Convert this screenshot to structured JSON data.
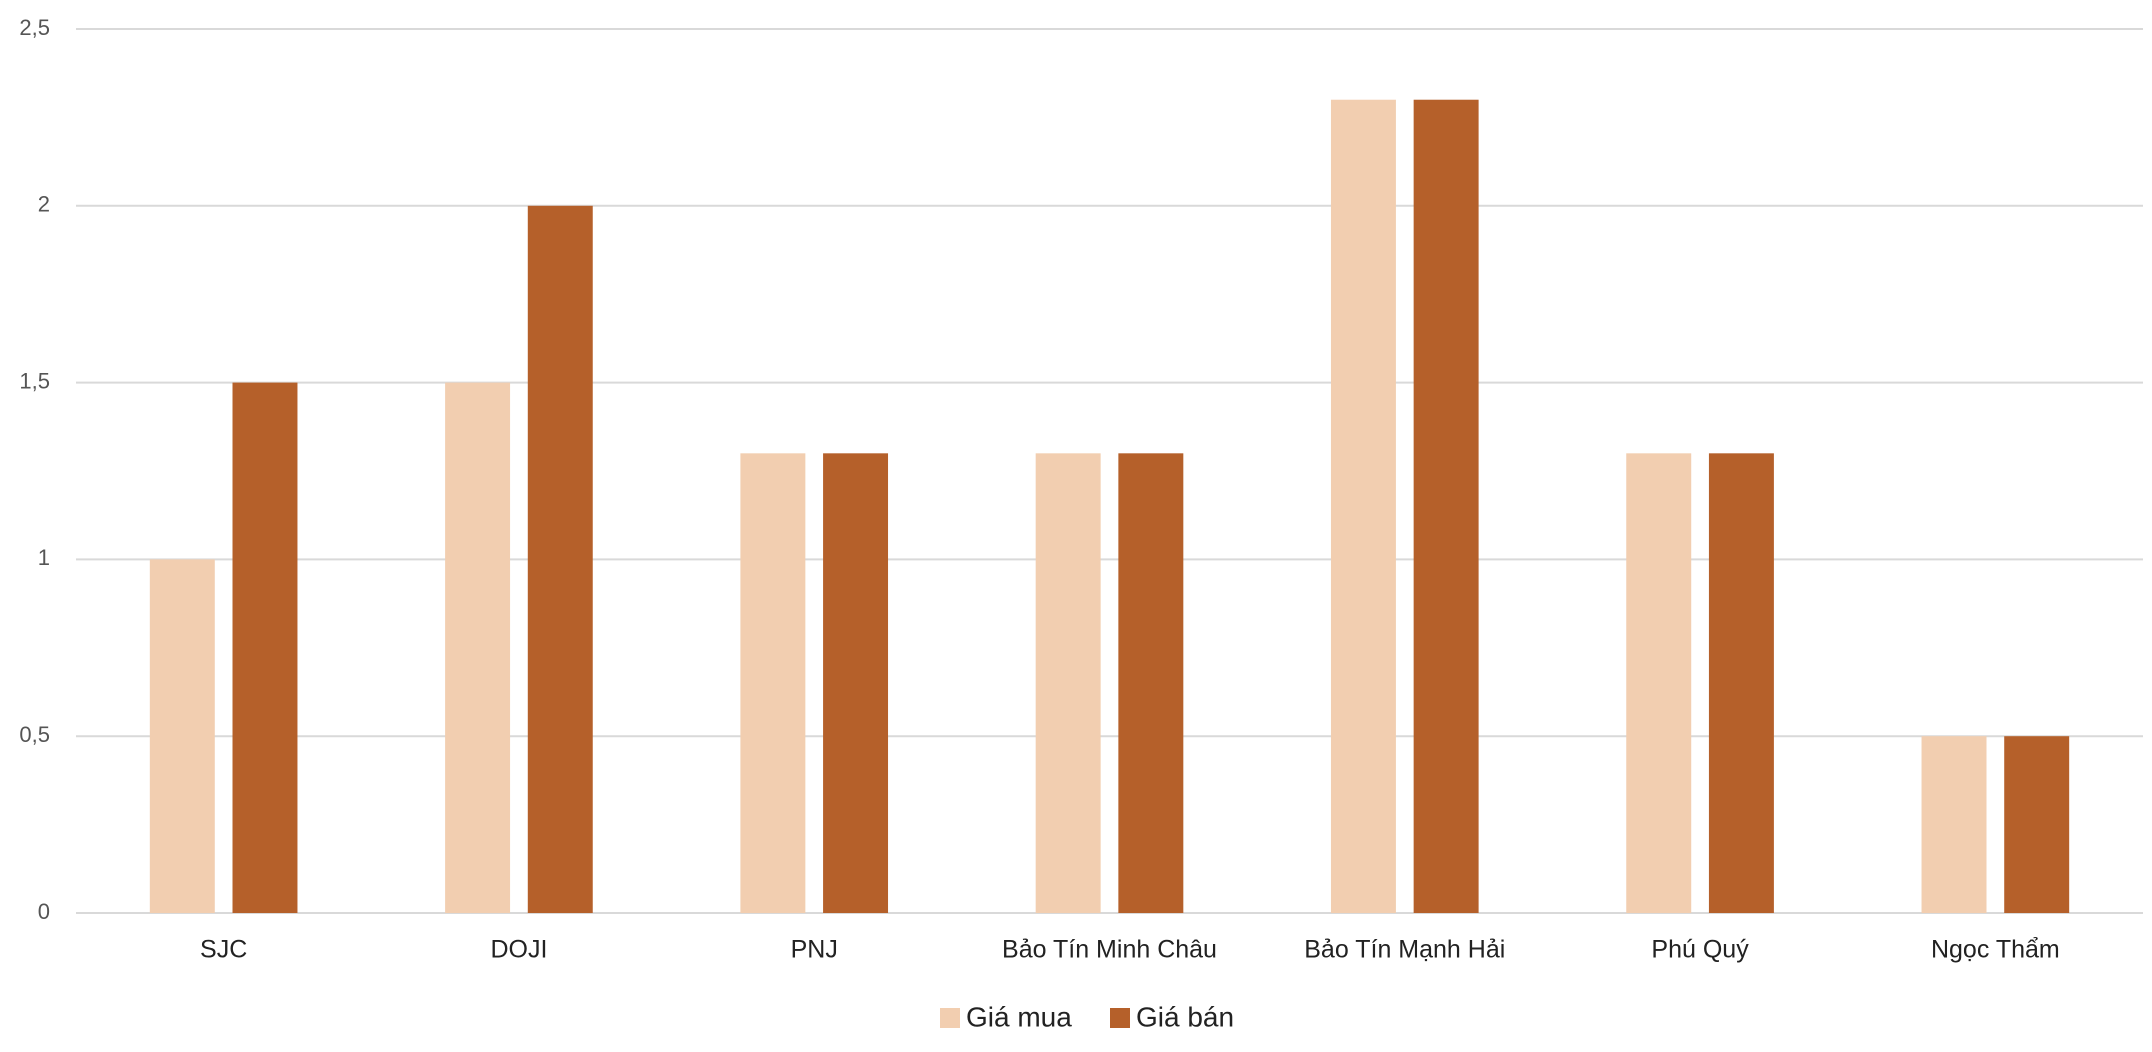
{
  "chart_data": {
    "type": "bar",
    "categories": [
      "SJC",
      "DOJI",
      "PNJ",
      "Bảo Tín Minh Châu",
      "Bảo Tín Mạnh Hải",
      "Phú Quý",
      "Ngọc Thẩm"
    ],
    "series": [
      {
        "name": "Giá mua",
        "color": "#F2CEB0",
        "values": [
          1,
          1.5,
          1.3,
          1.3,
          2.3,
          1.3,
          0.5
        ]
      },
      {
        "name": "Giá bán",
        "color": "#B5602A",
        "values": [
          1.5,
          2,
          1.3,
          1.3,
          2.3,
          1.3,
          0.5
        ]
      }
    ],
    "ylim": [
      0,
      2.5
    ],
    "yticks": [
      0,
      {
        "value": 0.5,
        "label": "0,5"
      },
      1,
      {
        "value": 1.5,
        "label": "1,5"
      },
      2,
      {
        "value": 2.5,
        "label": "2,5"
      }
    ],
    "grid": true,
    "legend": "bottom"
  }
}
